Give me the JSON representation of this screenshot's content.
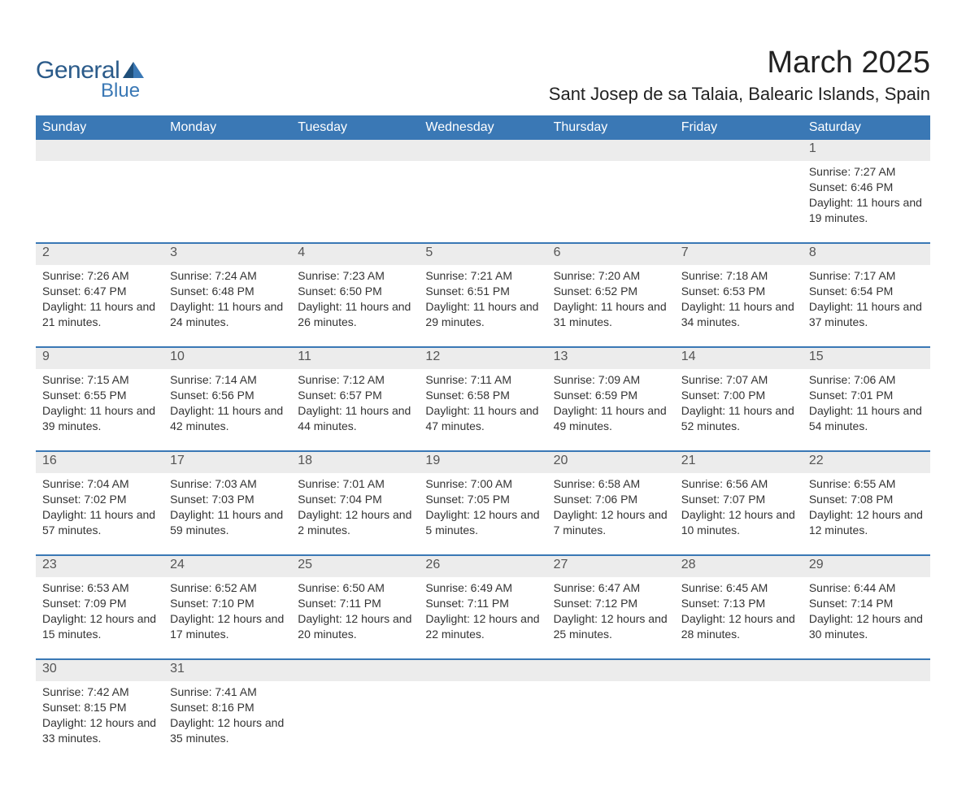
{
  "logo": {
    "text_general": "General",
    "text_blue": "Blue",
    "tri_dark": "#1f4f7a",
    "tri_light": "#3a78b5"
  },
  "header": {
    "month_title": "March 2025",
    "location": "Sant Josep de sa Talaia, Balearic Islands, Spain"
  },
  "calendar": {
    "header_bg": "#3a78b5",
    "header_text": "#ffffff",
    "daynum_bg": "#ececec",
    "row_divider": "#3a78b5",
    "body_text": "#333333",
    "day_labels": [
      "Sunday",
      "Monday",
      "Tuesday",
      "Wednesday",
      "Thursday",
      "Friday",
      "Saturday"
    ],
    "label_sunrise": "Sunrise: ",
    "label_sunset": "Sunset: ",
    "label_daylight_prefix": "Daylight: ",
    "weeks": [
      [
        null,
        null,
        null,
        null,
        null,
        null,
        {
          "n": "1",
          "sr": "7:27 AM",
          "ss": "6:46 PM",
          "dl": "11 hours and 19 minutes."
        }
      ],
      [
        {
          "n": "2",
          "sr": "7:26 AM",
          "ss": "6:47 PM",
          "dl": "11 hours and 21 minutes."
        },
        {
          "n": "3",
          "sr": "7:24 AM",
          "ss": "6:48 PM",
          "dl": "11 hours and 24 minutes."
        },
        {
          "n": "4",
          "sr": "7:23 AM",
          "ss": "6:50 PM",
          "dl": "11 hours and 26 minutes."
        },
        {
          "n": "5",
          "sr": "7:21 AM",
          "ss": "6:51 PM",
          "dl": "11 hours and 29 minutes."
        },
        {
          "n": "6",
          "sr": "7:20 AM",
          "ss": "6:52 PM",
          "dl": "11 hours and 31 minutes."
        },
        {
          "n": "7",
          "sr": "7:18 AM",
          "ss": "6:53 PM",
          "dl": "11 hours and 34 minutes."
        },
        {
          "n": "8",
          "sr": "7:17 AM",
          "ss": "6:54 PM",
          "dl": "11 hours and 37 minutes."
        }
      ],
      [
        {
          "n": "9",
          "sr": "7:15 AM",
          "ss": "6:55 PM",
          "dl": "11 hours and 39 minutes."
        },
        {
          "n": "10",
          "sr": "7:14 AM",
          "ss": "6:56 PM",
          "dl": "11 hours and 42 minutes."
        },
        {
          "n": "11",
          "sr": "7:12 AM",
          "ss": "6:57 PM",
          "dl": "11 hours and 44 minutes."
        },
        {
          "n": "12",
          "sr": "7:11 AM",
          "ss": "6:58 PM",
          "dl": "11 hours and 47 minutes."
        },
        {
          "n": "13",
          "sr": "7:09 AM",
          "ss": "6:59 PM",
          "dl": "11 hours and 49 minutes."
        },
        {
          "n": "14",
          "sr": "7:07 AM",
          "ss": "7:00 PM",
          "dl": "11 hours and 52 minutes."
        },
        {
          "n": "15",
          "sr": "7:06 AM",
          "ss": "7:01 PM",
          "dl": "11 hours and 54 minutes."
        }
      ],
      [
        {
          "n": "16",
          "sr": "7:04 AM",
          "ss": "7:02 PM",
          "dl": "11 hours and 57 minutes."
        },
        {
          "n": "17",
          "sr": "7:03 AM",
          "ss": "7:03 PM",
          "dl": "11 hours and 59 minutes."
        },
        {
          "n": "18",
          "sr": "7:01 AM",
          "ss": "7:04 PM",
          "dl": "12 hours and 2 minutes."
        },
        {
          "n": "19",
          "sr": "7:00 AM",
          "ss": "7:05 PM",
          "dl": "12 hours and 5 minutes."
        },
        {
          "n": "20",
          "sr": "6:58 AM",
          "ss": "7:06 PM",
          "dl": "12 hours and 7 minutes."
        },
        {
          "n": "21",
          "sr": "6:56 AM",
          "ss": "7:07 PM",
          "dl": "12 hours and 10 minutes."
        },
        {
          "n": "22",
          "sr": "6:55 AM",
          "ss": "7:08 PM",
          "dl": "12 hours and 12 minutes."
        }
      ],
      [
        {
          "n": "23",
          "sr": "6:53 AM",
          "ss": "7:09 PM",
          "dl": "12 hours and 15 minutes."
        },
        {
          "n": "24",
          "sr": "6:52 AM",
          "ss": "7:10 PM",
          "dl": "12 hours and 17 minutes."
        },
        {
          "n": "25",
          "sr": "6:50 AM",
          "ss": "7:11 PM",
          "dl": "12 hours and 20 minutes."
        },
        {
          "n": "26",
          "sr": "6:49 AM",
          "ss": "7:11 PM",
          "dl": "12 hours and 22 minutes."
        },
        {
          "n": "27",
          "sr": "6:47 AM",
          "ss": "7:12 PM",
          "dl": "12 hours and 25 minutes."
        },
        {
          "n": "28",
          "sr": "6:45 AM",
          "ss": "7:13 PM",
          "dl": "12 hours and 28 minutes."
        },
        {
          "n": "29",
          "sr": "6:44 AM",
          "ss": "7:14 PM",
          "dl": "12 hours and 30 minutes."
        }
      ],
      [
        {
          "n": "30",
          "sr": "7:42 AM",
          "ss": "8:15 PM",
          "dl": "12 hours and 33 minutes."
        },
        {
          "n": "31",
          "sr": "7:41 AM",
          "ss": "8:16 PM",
          "dl": "12 hours and 35 minutes."
        },
        null,
        null,
        null,
        null,
        null
      ]
    ]
  }
}
